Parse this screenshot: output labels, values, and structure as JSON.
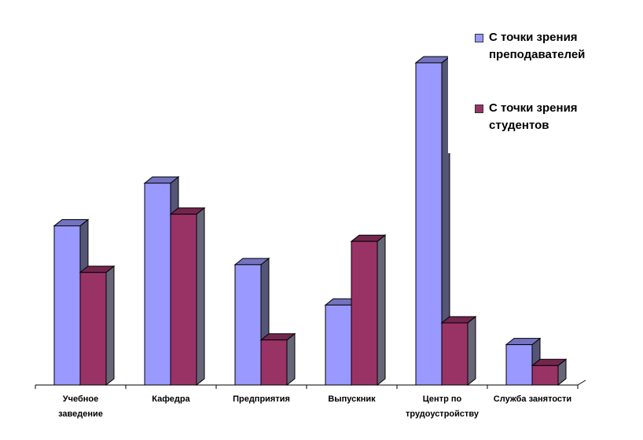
{
  "chart_data": {
    "type": "bar",
    "categories": [
      "Учебное заведение",
      "Кафедра",
      "Предприятия",
      "Выпускник",
      "Центр по трудоустройству",
      "Служба занятости"
    ],
    "category_lines": [
      [
        "Учебное",
        "заведение"
      ],
      [
        "Кафедра"
      ],
      [
        "Предприятия"
      ],
      [
        "Выпускник"
      ],
      [
        "Центр по",
        "трудоустройству"
      ],
      [
        "Служба занятости"
      ]
    ],
    "series": [
      {
        "name": "С точки зрения преподавателей",
        "name_lines": [
          "С точки зрения",
          "преподавателей"
        ],
        "color": "#9999ff",
        "values": [
          20.5,
          26,
          15.5,
          10.3,
          41.5,
          5.2
        ]
      },
      {
        "name": "С точки зрения студентов",
        "name_lines": [
          "С точки зрения",
          "студентов"
        ],
        "color": "#993366",
        "values": [
          14.5,
          22,
          5.8,
          18.5,
          8,
          2.5
        ]
      }
    ],
    "ylim": [
      0,
      42
    ],
    "grid": false,
    "legend_position": "top-right",
    "title": "",
    "xlabel": "",
    "ylabel": ""
  }
}
